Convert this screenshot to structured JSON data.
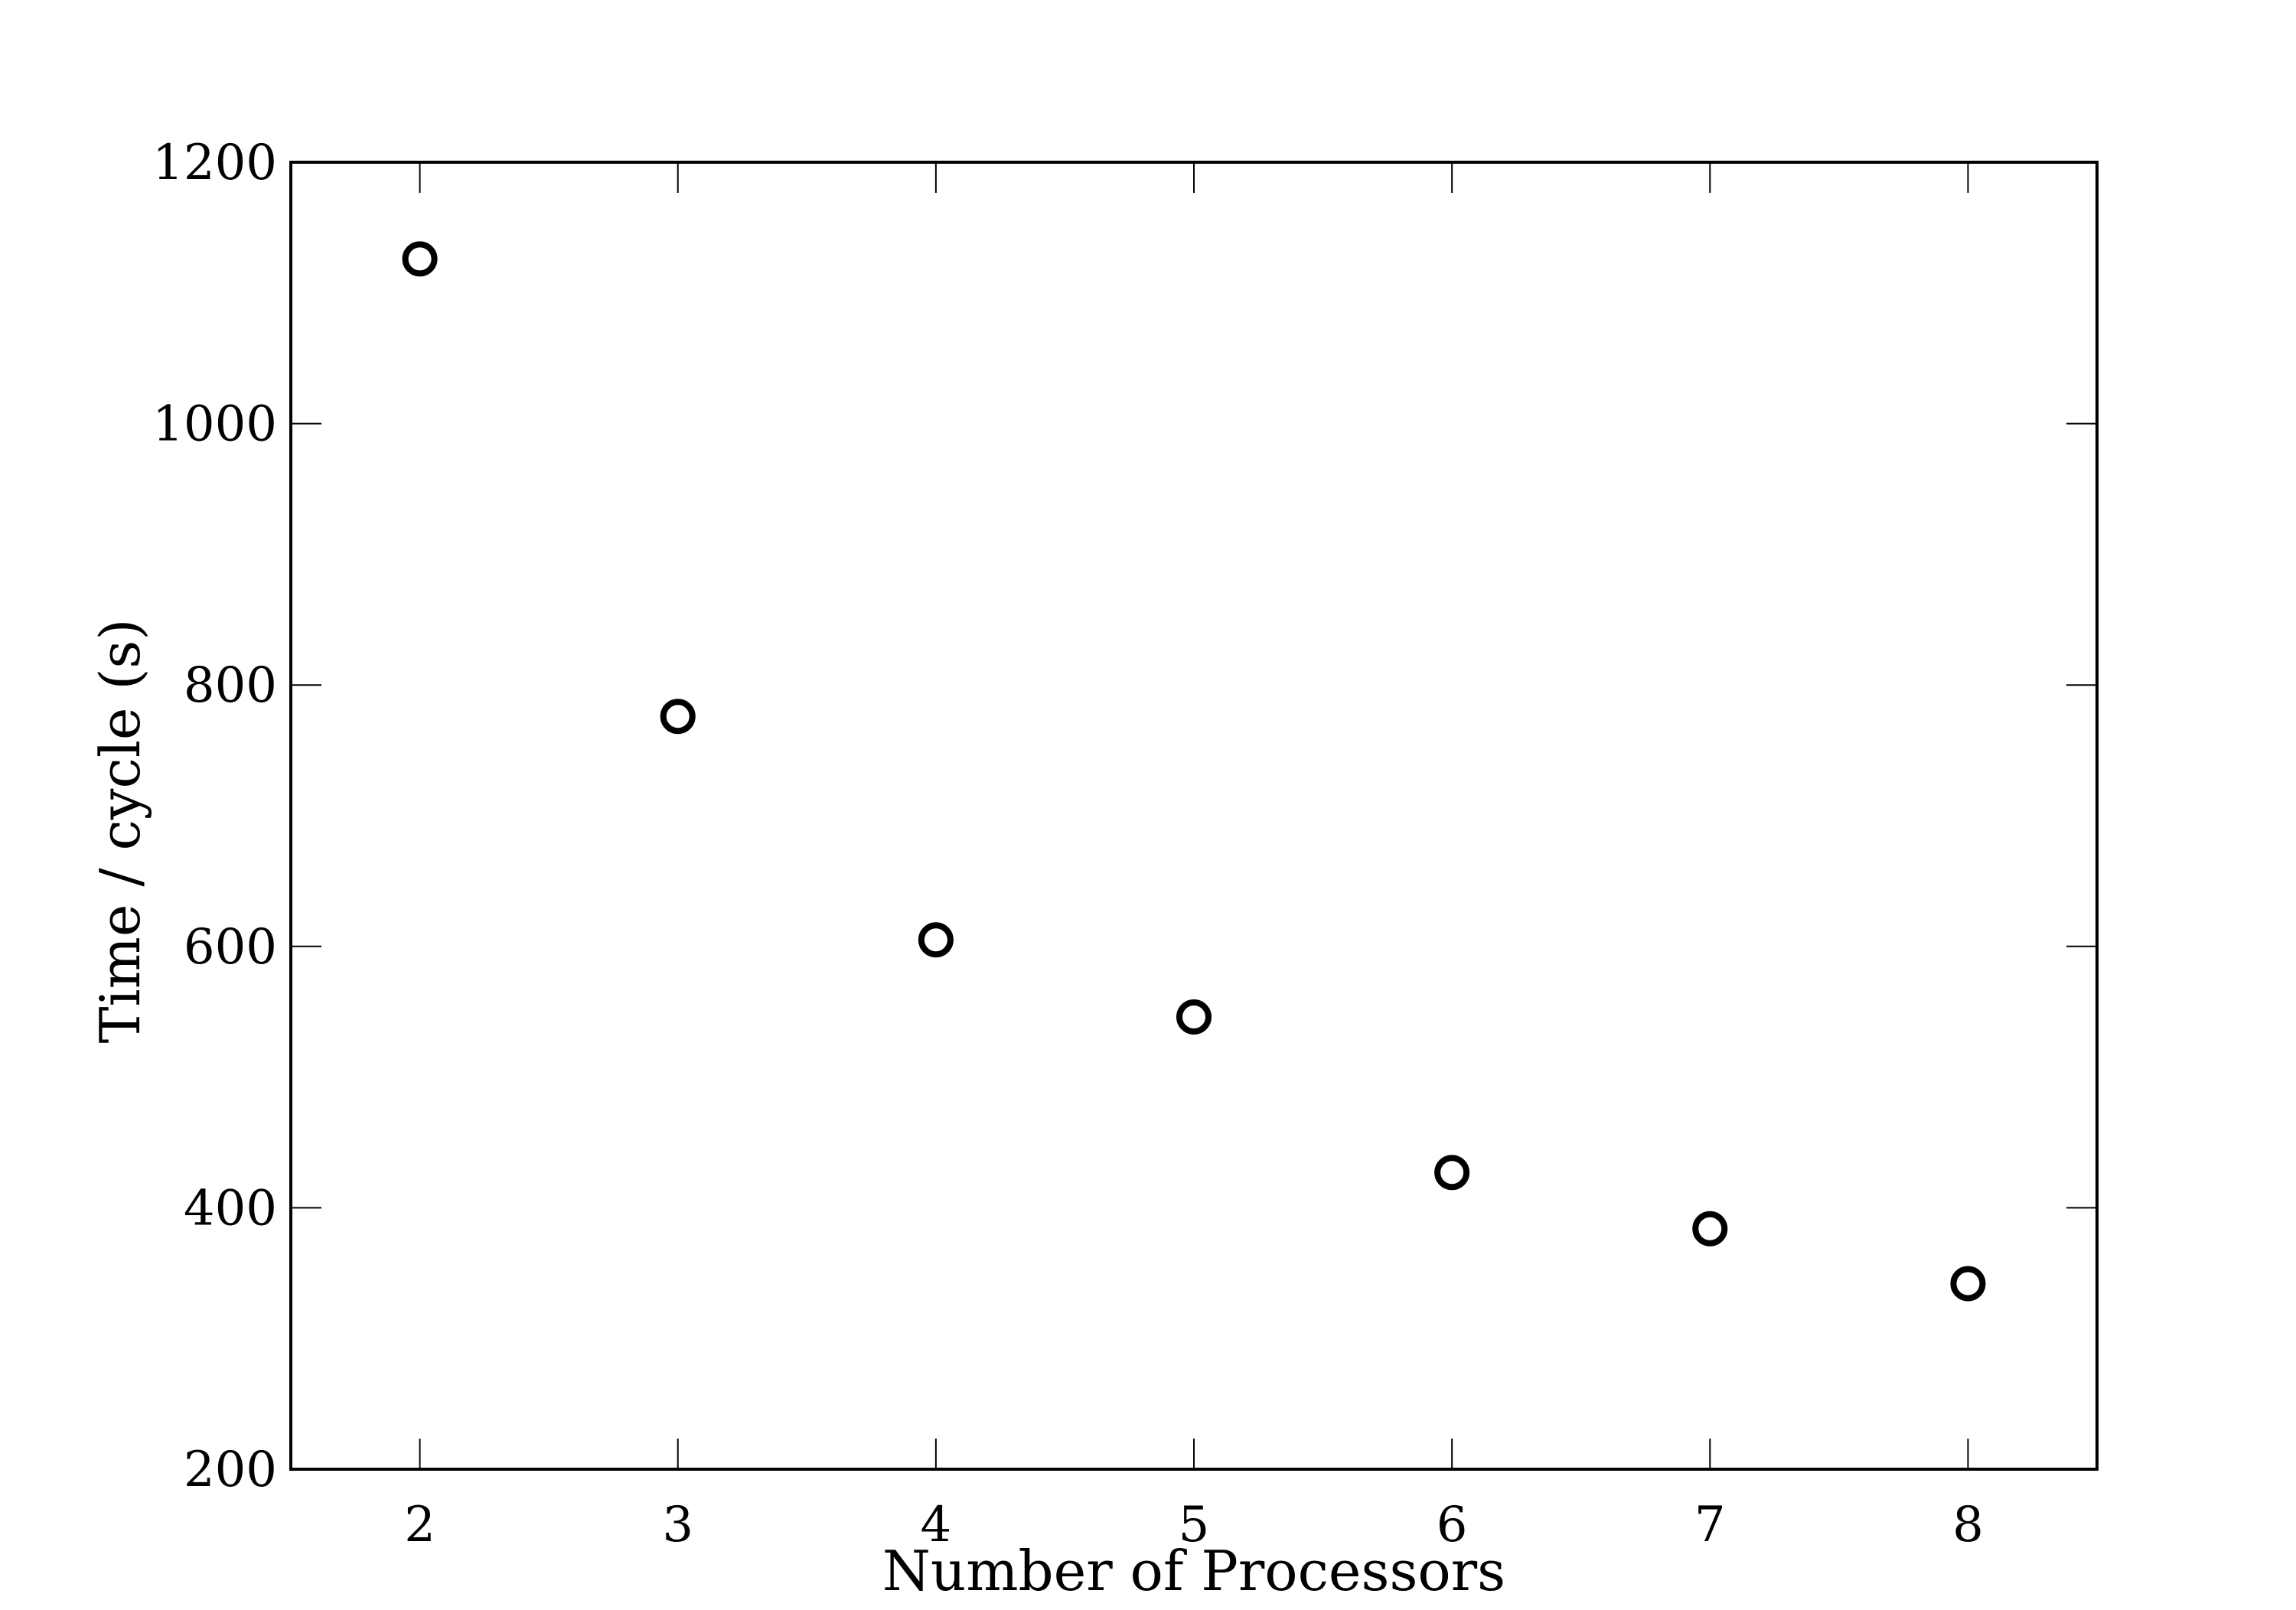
{
  "chart_data": {
    "type": "scatter",
    "title": "",
    "xlabel": "Number of Processors",
    "ylabel": "Time / cycle (s)",
    "xlim": [
      1.5,
      8.5
    ],
    "ylim": [
      200,
      1200
    ],
    "xticks": [
      2,
      3,
      4,
      5,
      6,
      7,
      8
    ],
    "yticks": [
      200,
      400,
      600,
      800,
      1000,
      1200
    ],
    "grid": false,
    "legend": "none",
    "marker": "open-circle",
    "series": [
      {
        "x": [
          2,
          3,
          4,
          5,
          6,
          7,
          8
        ],
        "y": [
          1126,
          776,
          605,
          546,
          427,
          384,
          342
        ]
      }
    ],
    "colors": {
      "marker": "#000000",
      "axes": "#000000",
      "background": "#ffffff"
    }
  }
}
